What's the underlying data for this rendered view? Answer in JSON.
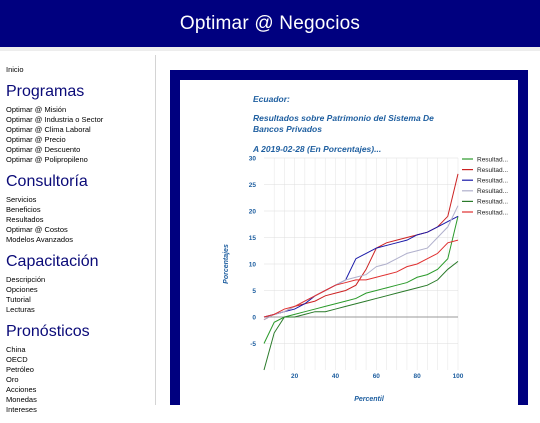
{
  "header": {
    "title": "Optimar @ Negocios"
  },
  "sidebar": {
    "home": "Inicio",
    "sections": [
      {
        "title": "Programas",
        "items": [
          "Optimar @ Misión",
          "Optimar @ Industria o Sector",
          "Optimar @ Clima Laboral",
          "Optimar @ Precio",
          "Optimar @ Descuento",
          "Optimar @ Polipropileno"
        ]
      },
      {
        "title": "Consultoría",
        "items": [
          "Servicios",
          "Beneficios",
          "Resultados",
          "Optimar @ Costos",
          "Modelos Avanzados"
        ]
      },
      {
        "title": "Capacitación",
        "items": [
          "Descripción",
          "Opciones",
          "Tutorial",
          "Lecturas"
        ]
      },
      {
        "title": "Pronósticos",
        "items": [
          "China",
          "OECD",
          "Petróleo",
          "Oro",
          "Acciones",
          "Monedas",
          "Intereses"
        ]
      }
    ]
  },
  "chart_data": {
    "type": "line",
    "title_lines": [
      "Ecuador:",
      "Resultados sobre Patrimonio del Sistema De",
      "Bancos Privados",
      "A 2019-02-28 (En Porcentajes)..."
    ],
    "xlabel": "Percentil",
    "ylabel": "Porcentajes",
    "xlim": [
      5,
      100
    ],
    "ylim": [
      -10,
      30
    ],
    "xticks": [
      20,
      40,
      60,
      80,
      100
    ],
    "yticks": [
      -5,
      0,
      5,
      10,
      15,
      20,
      25,
      30
    ],
    "legend_position": "right",
    "grid": true,
    "x": [
      5,
      10,
      15,
      20,
      25,
      30,
      35,
      40,
      45,
      50,
      55,
      60,
      65,
      70,
      75,
      80,
      85,
      90,
      95,
      100
    ],
    "series": [
      {
        "name": "Resultad...",
        "color": "#2a9a2a",
        "values": [
          -5,
          -1,
          0,
          0.5,
          1,
          1.5,
          2,
          2.5,
          3,
          3.5,
          4.5,
          5,
          5.5,
          6,
          6.5,
          7.5,
          8,
          9,
          11,
          19
        ]
      },
      {
        "name": "Resultad...",
        "color": "#cc2222",
        "values": [
          -0.5,
          0.5,
          1,
          2,
          2.5,
          3,
          4,
          4.5,
          5,
          6,
          9,
          13,
          14,
          14.5,
          15,
          15.5,
          16,
          17,
          19,
          27
        ]
      },
      {
        "name": "Resultad...",
        "color": "#1a1aa8",
        "values": [
          0,
          0.5,
          1,
          1.5,
          2.5,
          4,
          5,
          6,
          7,
          11,
          12,
          13,
          13.5,
          14,
          14.5,
          15.5,
          16,
          17,
          18,
          19
        ]
      },
      {
        "name": "Resultad...",
        "color": "#b0b0cc",
        "values": [
          -0.5,
          0.5,
          1,
          2,
          3,
          4,
          5,
          6,
          7,
          7.5,
          8,
          9.5,
          10,
          11,
          12,
          12.5,
          13,
          15,
          17,
          21
        ]
      },
      {
        "name": "Resultad...",
        "color": "#2a7a2a",
        "values": [
          -10,
          -3,
          0,
          0,
          0.5,
          1,
          1,
          1.5,
          2,
          2.5,
          3,
          3.5,
          4,
          4.5,
          5,
          5.5,
          6,
          7,
          9,
          10.5
        ]
      },
      {
        "name": "Resultad...",
        "color": "#e03030",
        "values": [
          0,
          0.5,
          1.5,
          2,
          3,
          4,
          5,
          6,
          6.5,
          7,
          7,
          7.5,
          8,
          8.5,
          9.5,
          10,
          11,
          12,
          14,
          14.5
        ]
      }
    ]
  }
}
